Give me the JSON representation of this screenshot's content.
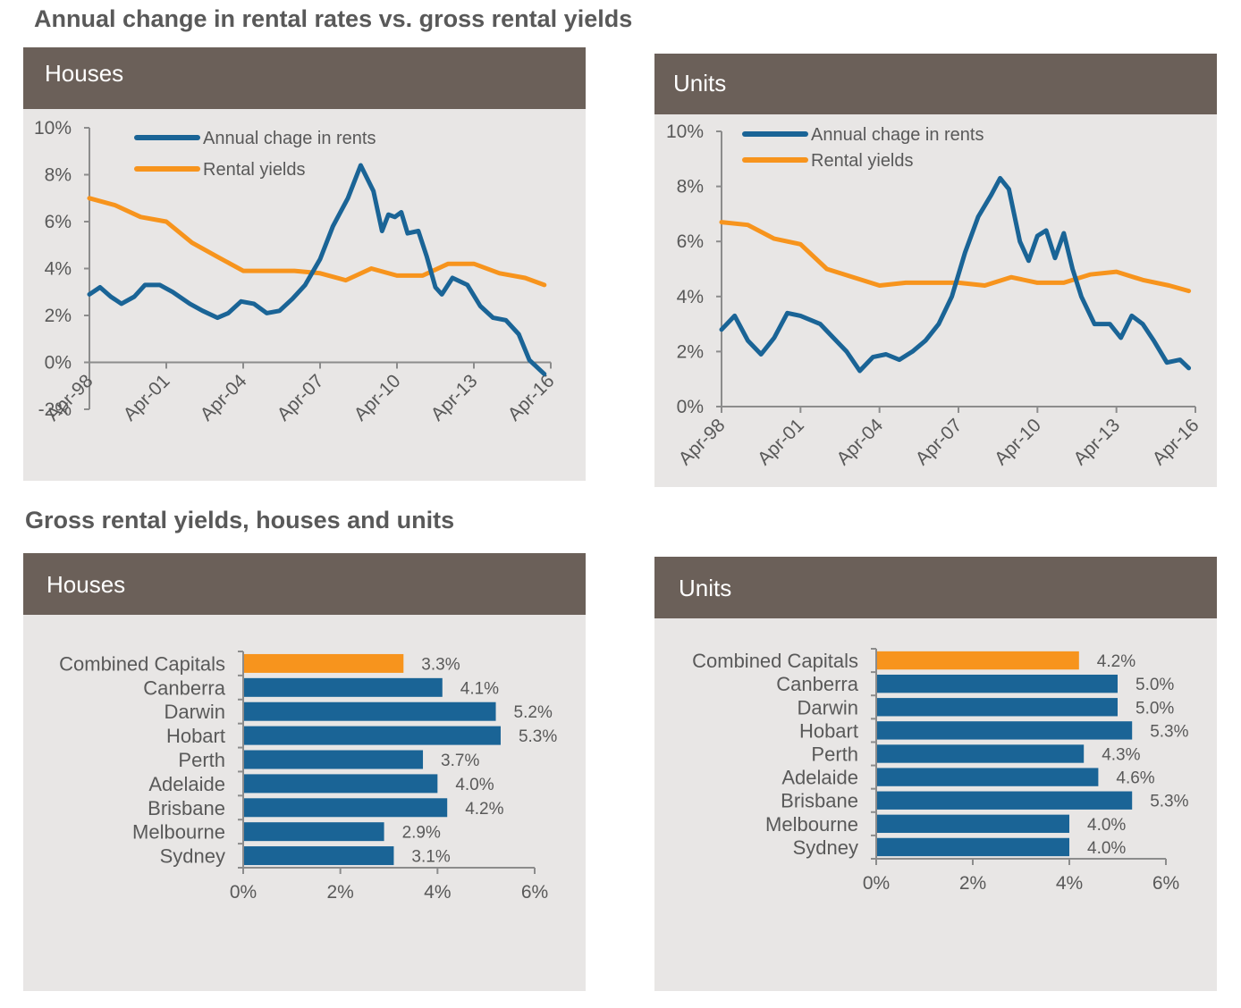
{
  "sections": {
    "top_title": "Annual change in rental rates vs. gross rental yields",
    "bottom_title": "Gross rental yields, houses and units"
  },
  "panels": {
    "line_houses": "Houses",
    "line_units": "Units",
    "bar_houses": "Houses",
    "bar_units": "Units"
  },
  "colors": {
    "rents_line": "#1a6496",
    "yields_line": "#f7941d",
    "bar_highlight": "#f7941d",
    "bar_default": "#1a6496",
    "header_bg": "#6b6059",
    "panel_bg": "#e8e6e5"
  },
  "chart_data": [
    {
      "id": "houses_line",
      "type": "line",
      "title": "Houses",
      "x_ticks": [
        "Apr-98",
        "Apr-01",
        "Apr-04",
        "Apr-07",
        "Apr-10",
        "Apr-13",
        "Apr-16"
      ],
      "xlim": [
        "1998-04",
        "2016-04"
      ],
      "ylim": [
        -2,
        10
      ],
      "y_ticks": [
        "-2%",
        "0%",
        "2%",
        "4%",
        "6%",
        "8%",
        "10%"
      ],
      "y_tick_values": [
        -2,
        0,
        2,
        4,
        6,
        8,
        10
      ],
      "grid": false,
      "legend_position": "top-left",
      "series": [
        {
          "name": "Annual chage in rents",
          "points": [
            [
              "1998-04",
              2.9
            ],
            [
              "1998-09",
              3.2
            ],
            [
              "1999-02",
              2.8
            ],
            [
              "1999-07",
              2.5
            ],
            [
              "2000-01",
              2.8
            ],
            [
              "2000-06",
              3.3
            ],
            [
              "2001-01",
              3.3
            ],
            [
              "2001-07",
              3.0
            ],
            [
              "2002-03",
              2.5
            ],
            [
              "2002-09",
              2.2
            ],
            [
              "2003-04",
              1.9
            ],
            [
              "2003-09",
              2.1
            ],
            [
              "2004-03",
              2.6
            ],
            [
              "2004-09",
              2.5
            ],
            [
              "2005-03",
              2.1
            ],
            [
              "2005-09",
              2.2
            ],
            [
              "2006-03",
              2.7
            ],
            [
              "2006-09",
              3.3
            ],
            [
              "2007-04",
              4.4
            ],
            [
              "2007-10",
              5.8
            ],
            [
              "2008-05",
              7.0
            ],
            [
              "2008-11",
              8.4
            ],
            [
              "2009-05",
              7.3
            ],
            [
              "2009-09",
              5.6
            ],
            [
              "2009-12",
              6.3
            ],
            [
              "2010-03",
              6.2
            ],
            [
              "2010-06",
              6.4
            ],
            [
              "2010-09",
              5.5
            ],
            [
              "2011-02",
              5.6
            ],
            [
              "2011-06",
              4.5
            ],
            [
              "2011-10",
              3.2
            ],
            [
              "2012-01",
              2.9
            ],
            [
              "2012-06",
              3.6
            ],
            [
              "2013-01",
              3.3
            ],
            [
              "2013-07",
              2.4
            ],
            [
              "2014-01",
              1.9
            ],
            [
              "2014-07",
              1.8
            ],
            [
              "2015-01",
              1.2
            ],
            [
              "2015-06",
              0.1
            ],
            [
              "2016-01",
              -0.5
            ]
          ]
        },
        {
          "name": "Rental yields",
          "points": [
            [
              "1998-04",
              7.0
            ],
            [
              "1999-04",
              6.7
            ],
            [
              "2000-04",
              6.2
            ],
            [
              "2001-04",
              6.0
            ],
            [
              "2002-04",
              5.1
            ],
            [
              "2003-04",
              4.5
            ],
            [
              "2004-04",
              3.9
            ],
            [
              "2005-04",
              3.9
            ],
            [
              "2006-04",
              3.9
            ],
            [
              "2007-04",
              3.8
            ],
            [
              "2008-04",
              3.5
            ],
            [
              "2009-04",
              4.0
            ],
            [
              "2010-04",
              3.7
            ],
            [
              "2011-04",
              3.7
            ],
            [
              "2012-04",
              4.2
            ],
            [
              "2013-04",
              4.2
            ],
            [
              "2014-04",
              3.8
            ],
            [
              "2015-04",
              3.6
            ],
            [
              "2016-01",
              3.3
            ]
          ]
        }
      ]
    },
    {
      "id": "units_line",
      "type": "line",
      "title": "Units",
      "x_ticks": [
        "Apr-98",
        "Apr-01",
        "Apr-04",
        "Apr-07",
        "Apr-10",
        "Apr-13",
        "Apr-16"
      ],
      "xlim": [
        "1998-04",
        "2016-04"
      ],
      "ylim": [
        0,
        10
      ],
      "y_ticks": [
        "0%",
        "2%",
        "4%",
        "6%",
        "8%",
        "10%"
      ],
      "y_tick_values": [
        0,
        2,
        4,
        6,
        8,
        10
      ],
      "grid": false,
      "legend_position": "top-left",
      "series": [
        {
          "name": "Annual chage in rents",
          "points": [
            [
              "1998-04",
              2.8
            ],
            [
              "1998-10",
              3.3
            ],
            [
              "1999-04",
              2.4
            ],
            [
              "1999-10",
              1.9
            ],
            [
              "2000-04",
              2.5
            ],
            [
              "2000-10",
              3.4
            ],
            [
              "2001-04",
              3.3
            ],
            [
              "2002-01",
              3.0
            ],
            [
              "2002-07",
              2.5
            ],
            [
              "2003-01",
              2.0
            ],
            [
              "2003-07",
              1.3
            ],
            [
              "2004-01",
              1.8
            ],
            [
              "2004-07",
              1.9
            ],
            [
              "2005-01",
              1.7
            ],
            [
              "2005-07",
              2.0
            ],
            [
              "2006-01",
              2.4
            ],
            [
              "2006-07",
              3.0
            ],
            [
              "2007-01",
              4.0
            ],
            [
              "2007-07",
              5.6
            ],
            [
              "2008-01",
              6.9
            ],
            [
              "2008-07",
              7.7
            ],
            [
              "2008-11",
              8.3
            ],
            [
              "2009-03",
              7.9
            ],
            [
              "2009-08",
              6.0
            ],
            [
              "2009-12",
              5.3
            ],
            [
              "2010-04",
              6.2
            ],
            [
              "2010-08",
              6.4
            ],
            [
              "2010-12",
              5.4
            ],
            [
              "2011-04",
              6.3
            ],
            [
              "2011-08",
              5.0
            ],
            [
              "2011-12",
              4.0
            ],
            [
              "2012-06",
              3.0
            ],
            [
              "2013-01",
              3.0
            ],
            [
              "2013-06",
              2.5
            ],
            [
              "2013-11",
              3.3
            ],
            [
              "2014-04",
              3.0
            ],
            [
              "2014-09",
              2.4
            ],
            [
              "2015-03",
              1.6
            ],
            [
              "2015-09",
              1.7
            ],
            [
              "2016-01",
              1.4
            ]
          ]
        },
        {
          "name": "Rental yields",
          "points": [
            [
              "1998-04",
              6.7
            ],
            [
              "1999-04",
              6.6
            ],
            [
              "2000-04",
              6.1
            ],
            [
              "2001-04",
              5.9
            ],
            [
              "2002-04",
              5.0
            ],
            [
              "2003-04",
              4.7
            ],
            [
              "2004-04",
              4.4
            ],
            [
              "2005-04",
              4.5
            ],
            [
              "2006-04",
              4.5
            ],
            [
              "2007-04",
              4.5
            ],
            [
              "2008-04",
              4.4
            ],
            [
              "2009-04",
              4.7
            ],
            [
              "2010-04",
              4.5
            ],
            [
              "2011-04",
              4.5
            ],
            [
              "2012-04",
              4.8
            ],
            [
              "2013-04",
              4.9
            ],
            [
              "2014-04",
              4.6
            ],
            [
              "2015-04",
              4.4
            ],
            [
              "2016-01",
              4.2
            ]
          ]
        }
      ]
    },
    {
      "id": "houses_bar",
      "type": "bar",
      "orientation": "horizontal",
      "title": "Houses",
      "categories": [
        "Combined Capitals",
        "Canberra",
        "Darwin",
        "Hobart",
        "Perth",
        "Adelaide",
        "Brisbane",
        "Melbourne",
        "Sydney"
      ],
      "values": [
        3.3,
        4.1,
        5.2,
        5.3,
        3.7,
        4.0,
        4.2,
        2.9,
        3.1
      ],
      "labels": [
        "3.3%",
        "4.1%",
        "5.2%",
        "5.3%",
        "3.7%",
        "4.0%",
        "4.2%",
        "2.9%",
        "3.1%"
      ],
      "highlight_index": 0,
      "xlim": [
        0,
        6
      ],
      "x_ticks": [
        "0%",
        "2%",
        "4%",
        "6%"
      ],
      "x_tick_values": [
        0,
        2,
        4,
        6
      ]
    },
    {
      "id": "units_bar",
      "type": "bar",
      "orientation": "horizontal",
      "title": "Units",
      "categories": [
        "Combined Capitals",
        "Canberra",
        "Darwin",
        "Hobart",
        "Perth",
        "Adelaide",
        "Brisbane",
        "Melbourne",
        "Sydney"
      ],
      "values": [
        4.2,
        5.0,
        5.0,
        5.3,
        4.3,
        4.6,
        5.3,
        4.0,
        4.0
      ],
      "labels": [
        "4.2%",
        "5.0%",
        "5.0%",
        "5.3%",
        "4.3%",
        "4.6%",
        "5.3%",
        "4.0%",
        "4.0%"
      ],
      "highlight_index": 0,
      "xlim": [
        0,
        6
      ],
      "x_ticks": [
        "0%",
        "2%",
        "4%",
        "6%"
      ],
      "x_tick_values": [
        0,
        2,
        4,
        6
      ]
    }
  ]
}
